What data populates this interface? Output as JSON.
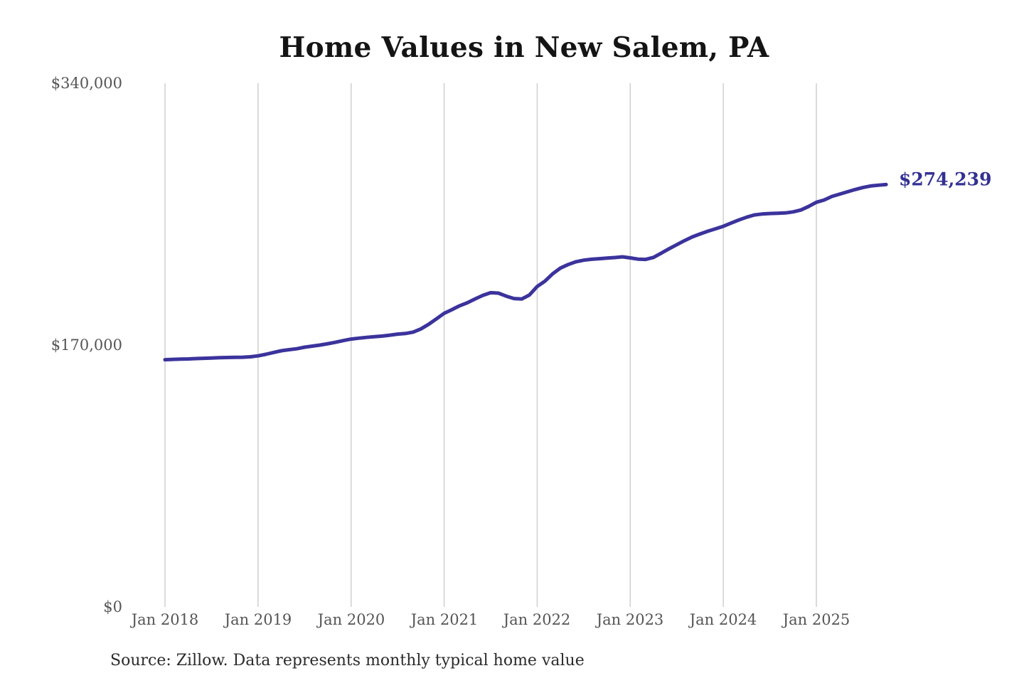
{
  "title": "Home Values in New Salem, PA",
  "source_note": "Source: Zillow. Data represents monthly typical home value",
  "colors": {
    "line": "#3b339c",
    "end_label": "#333093",
    "grid": "#cfcfcf",
    "axis_text": "#555555",
    "title_text": "#141414",
    "source_text": "#2b2b2b",
    "background": "#ffffff"
  },
  "chart_data": {
    "type": "line",
    "title": "Home Values in New Salem, PA",
    "xlabel": "",
    "ylabel": "",
    "x_start_month": "2018-01",
    "x_end_month": "2025-10",
    "x_tick_labels": [
      "Jan 2018",
      "Jan 2019",
      "Jan 2020",
      "Jan 2021",
      "Jan 2022",
      "Jan 2023",
      "Jan 2024",
      "Jan 2025"
    ],
    "y_ticks": [
      0,
      170000,
      340000
    ],
    "y_tick_labels": [
      "$0",
      "$170,000",
      "$340,000"
    ],
    "ylim": [
      0,
      340000
    ],
    "grid": "vertical-only",
    "legend": "none",
    "end_value": 274239,
    "end_value_label": "$274,239",
    "series": [
      {
        "name": "Monthly typical home value",
        "values": [
          160500,
          160700,
          160900,
          161000,
          161200,
          161400,
          161600,
          161800,
          161900,
          162000,
          162100,
          162400,
          163000,
          164000,
          165200,
          166300,
          167000,
          167600,
          168600,
          169300,
          170000,
          170900,
          171800,
          172900,
          173900,
          174500,
          175000,
          175400,
          175800,
          176400,
          177100,
          177500,
          178400,
          180500,
          183500,
          187000,
          190600,
          193000,
          195500,
          197500,
          200000,
          202300,
          204000,
          203700,
          201800,
          200200,
          199900,
          202500,
          208000,
          211500,
          216300,
          220000,
          222300,
          224100,
          225100,
          225700,
          226100,
          226500,
          226800,
          227300,
          226600,
          225800,
          225600,
          226900,
          229700,
          232500,
          235200,
          237800,
          240200,
          242100,
          243900,
          245500,
          247100,
          249200,
          251200,
          253000,
          254500,
          255100,
          255400,
          255600,
          255800,
          256500,
          257700,
          260000,
          262700,
          264200,
          266500,
          268000,
          269500,
          271000,
          272300,
          273300,
          273800,
          274239
        ]
      }
    ]
  }
}
